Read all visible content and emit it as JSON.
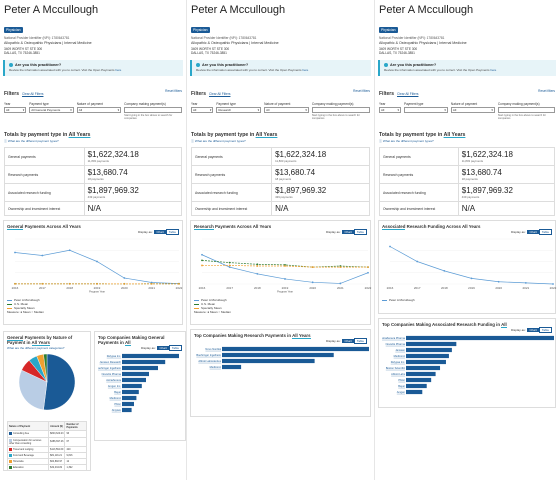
{
  "profile": {
    "name": "Peter A Mccullough",
    "badge": "Physician",
    "npi_line": "National Provider Identifier (NPI): 1780643781",
    "specialty": "Allopathic & Osteopathic Physicians | Internal Medicine",
    "address1": "3409 WORTH ST STE 300",
    "address2": "DALLAS, TX 75246-3851"
  },
  "info": {
    "title": "Are you this practitioner?",
    "text": "Review the information associated with you to correct. Visit the Open Payments",
    "link": "here"
  },
  "filters": {
    "title": "Filters",
    "clear": "Clear All Filters",
    "reset": "Reset filters",
    "year_label": "Year",
    "year_value": "All",
    "payment_type_label": "Payment type",
    "payment_type_general": "All General Payments",
    "payment_type_research": "Research",
    "nature_label": "Nature of payment",
    "nature_value": "All",
    "company_label": "Company making payment(s)",
    "company_help": "Start typing in the box above to search for companies"
  },
  "totals": {
    "title": "Totals by payment type in",
    "title_em": "All Years",
    "link": "What are the different payment types?",
    "rows": [
      {
        "label": "General payments",
        "value": "$1,622,324.18",
        "sub": "11,803 payments"
      },
      {
        "label": "Research payments",
        "value": "$13,680.74",
        "sub": "18 payments"
      },
      {
        "label": "Associated research funding",
        "value": "$1,897,969.32",
        "sub": "439 payments"
      },
      {
        "label": "Ownership and investment interest",
        "value": "N/A",
        "sub": ""
      }
    ]
  },
  "display": {
    "label": "Display as:",
    "chart": "Chart",
    "table": "Table"
  },
  "general_chart": {
    "title_pre": "General",
    "title_rest": " Payments Across All Years",
    "years": [
      "2016",
      "2017",
      "2018",
      "2019",
      "2020",
      "2021",
      "2022"
    ],
    "x_title": "Program Year",
    "legend": [
      "Peter A Mccullough",
      "U.S. Mean",
      "Specialty Mean"
    ],
    "measure_label": "Measure:",
    "measure_options": [
      "Mean",
      "Median"
    ]
  },
  "research_chart": {
    "title_pre": "Research",
    "title_rest": " Payments Across All Years",
    "years": [
      "2016",
      "2017",
      "2018",
      "2019",
      "2020",
      "2021",
      "2022"
    ],
    "x_title": "Program Year",
    "legend": [
      "Peter A Mccullough",
      "U.S. Mean",
      "Specialty Mean"
    ],
    "measure_label": "Measure:",
    "measure_options": [
      "Mean",
      "Median"
    ]
  },
  "assoc_chart": {
    "title_pre": "Associated",
    "title_rest": " Research Funding Across All Years",
    "years": [
      "2016",
      "2017",
      "2018",
      "2019",
      "2020",
      "2021",
      "2022"
    ],
    "legend": [
      "Peter A Mccullough"
    ]
  },
  "chart_data": [
    {
      "type": "line",
      "title": "General Payments Across All Years",
      "xlabel": "Program Year",
      "x": [
        "2016",
        "2017",
        "2018",
        "2019",
        "2020",
        "2021",
        "2022"
      ],
      "ylim": [
        0,
        600000
      ],
      "series": [
        {
          "name": "Peter A Mccullough",
          "values": [
            420000,
            380000,
            450000,
            300000,
            80000,
            20000,
            5000
          ]
        },
        {
          "name": "U.S. Mean",
          "values": [
            3000,
            3000,
            3000,
            3000,
            2500,
            3000,
            3000
          ]
        },
        {
          "name": "Specialty Mean",
          "values": [
            2000,
            2000,
            2000,
            2000,
            1500,
            2000,
            2000
          ]
        }
      ]
    },
    {
      "type": "line",
      "title": "Research Payments Across All Years",
      "xlabel": "Program Year",
      "x": [
        "2016",
        "2017",
        "2018",
        "2019",
        "2020",
        "2021",
        "2022"
      ],
      "ylim": [
        0,
        8000
      ],
      "series": [
        {
          "name": "Peter A Mccullough",
          "values": [
            5200,
            3000,
            1800,
            900,
            300,
            100,
            2000
          ]
        },
        {
          "name": "U.S. Mean",
          "values": [
            4200,
            3800,
            3500,
            3400,
            3000,
            3200,
            3000
          ]
        },
        {
          "name": "Specialty Mean",
          "values": [
            3300,
            3300,
            3200,
            3200,
            3000,
            3000,
            3000
          ]
        }
      ]
    },
    {
      "type": "line",
      "title": "Associated Research Funding Across All Years",
      "x": [
        "2016",
        "2017",
        "2018",
        "2019",
        "2020",
        "2021",
        "2022"
      ],
      "ylim": [
        0,
        1200000
      ],
      "series": [
        {
          "name": "Peter A Mccullough",
          "values": [
            1000000,
            600000,
            350000,
            150000,
            60000,
            30000,
            0
          ]
        }
      ]
    },
    {
      "type": "pie",
      "title": "General Payments by Nature of Payment in All Years",
      "categories": [
        "Consulting Fee",
        "Compensation for services other than consulting",
        "Travel and Lodging",
        "Food and Beverage",
        "Honoraria",
        "Education"
      ],
      "values": [
        52,
        30,
        7,
        5,
        4,
        2
      ]
    },
    {
      "type": "bar",
      "title": "Top Companies Making General Payments in All",
      "categories": [
        "Relypsa Inc.",
        "Janssen Research",
        "Boehringer Ingelheim",
        "Novartis Pharma",
        "AstraZeneca",
        "Amgen Inc.",
        "Bayer",
        "Medtronic",
        "Pfizer",
        "Alnylam"
      ],
      "values": [
        95,
        72,
        60,
        45,
        40,
        33,
        28,
        24,
        20,
        16
      ]
    },
    {
      "type": "bar",
      "title": "Top Companies Making Research Payments in All Years",
      "categories": [
        "Novo Nordisk",
        "Boehringer Ingelheim",
        "Abbott Laboratories",
        "Medtronic"
      ],
      "values": [
        100,
        76,
        63,
        13
      ]
    },
    {
      "type": "bar",
      "title": "Top Companies Making Associated Research Funding in All",
      "categories": [
        "AstraZeneca Pharma",
        "Novartis Pharma",
        "Janssen",
        "Medtronic",
        "Relypsa Inc.",
        "Boston Scientific",
        "Abbott Labs",
        "Pfizer",
        "Bayer",
        "Amgen"
      ],
      "values": [
        100,
        34,
        31,
        29,
        27,
        23,
        20,
        17,
        14,
        11
      ]
    }
  ],
  "pie_section": {
    "title_pre": "General",
    "title_rest": " Payments by Nature of Payment in",
    "title_em": "All Years",
    "link": "What are the different payment categories?",
    "headers": [
      "Nature of Payment",
      "Amount ($)",
      "Number of Payments"
    ],
    "rows": [
      {
        "name": "Consulting Fee",
        "amount": "$843,620.23",
        "count": "96"
      },
      {
        "name": "Compensation for services other than consulting",
        "amount": "$486,697.26",
        "count": "67"
      },
      {
        "name": "Travel and Lodging",
        "amount": "$113,562.69",
        "count": "420"
      },
      {
        "name": "Food and Beverage",
        "amount": "$81,116.21",
        "count": "9,816"
      },
      {
        "name": "Honoraria",
        "amount": "$64,892.97",
        "count": "12"
      },
      {
        "name": "Education",
        "amount": "$32,434.82",
        "count": "1,392"
      }
    ]
  },
  "top_general": {
    "title": "Top Companies Making General Payments in",
    "title_em": "All"
  },
  "top_research": {
    "title": "Top Companies Making Research Payments in",
    "title_em": "All Years"
  },
  "top_assoc": {
    "title": "Top Companies Making Associated Research Funding in",
    "title_em": "All"
  },
  "colors": {
    "primary": "#1a5a96",
    "line_blue": "#5b9bd5",
    "us_mean": "#2f7d32",
    "spec_mean": "#f0a030",
    "accent": "#2aa7c9"
  }
}
